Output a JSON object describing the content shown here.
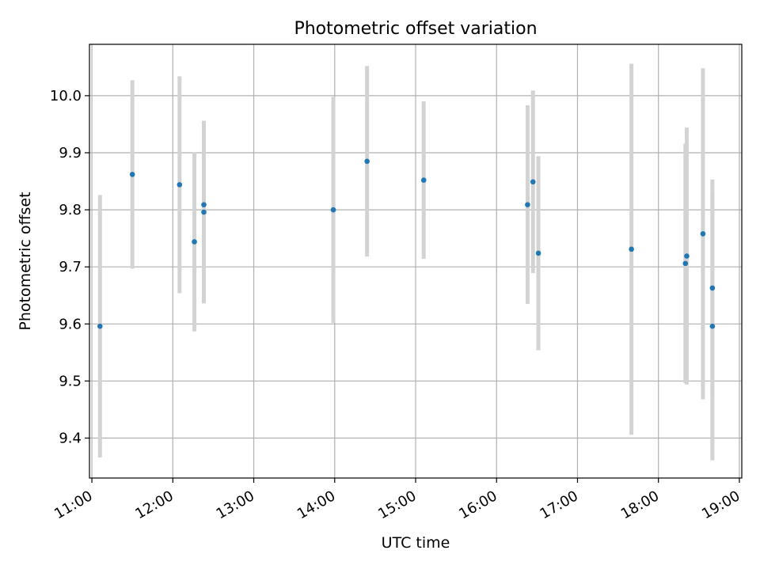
{
  "chart_data": {
    "type": "scatter",
    "title": "Photometric offset variation",
    "xlabel": "UTC time",
    "ylabel": "Photometric offset",
    "x_tick_labels": [
      "11:00",
      "12:00",
      "13:00",
      "14:00",
      "15:00",
      "16:00",
      "17:00",
      "18:00",
      "19:00"
    ],
    "x_ticks_hours": [
      11,
      12,
      13,
      14,
      15,
      16,
      17,
      18,
      19
    ],
    "y_ticks": [
      9.4,
      9.5,
      9.6,
      9.7,
      9.8,
      9.9,
      10.0
    ],
    "y_tick_labels": [
      "9.4",
      "9.5",
      "9.6",
      "9.7",
      "9.8",
      "9.9",
      "10.0"
    ],
    "xlim_hours": [
      10.97,
      19.03
    ],
    "ylim": [
      9.33,
      10.09
    ],
    "grid": true,
    "marker_color": "#1f77b4",
    "errorbar_color": "#d3d3d3",
    "points": [
      {
        "time": "11:06",
        "y": 9.596,
        "err": 0.23
      },
      {
        "time": "11:30",
        "y": 9.862,
        "err": 0.165
      },
      {
        "time": "12:05",
        "y": 9.844,
        "err": 0.19
      },
      {
        "time": "12:16",
        "y": 9.744,
        "err": 0.157
      },
      {
        "time": "12:23",
        "y": 9.796,
        "err": 0.16
      },
      {
        "time": "12:23",
        "y": 9.809,
        "err": 0.14
      },
      {
        "time": "13:59",
        "y": 9.8,
        "err": 0.198
      },
      {
        "time": "14:24",
        "y": 9.885,
        "err": 0.167
      },
      {
        "time": "15:06",
        "y": 9.852,
        "err": 0.138
      },
      {
        "time": "16:23",
        "y": 9.809,
        "err": 0.174
      },
      {
        "time": "16:27",
        "y": 9.849,
        "err": 0.16
      },
      {
        "time": "16:31",
        "y": 9.724,
        "err": 0.17
      },
      {
        "time": "17:40",
        "y": 9.731,
        "err": 0.325
      },
      {
        "time": "18:20",
        "y": 9.706,
        "err": 0.21
      },
      {
        "time": "18:21",
        "y": 9.719,
        "err": 0.225
      },
      {
        "time": "18:33",
        "y": 9.758,
        "err": 0.29
      },
      {
        "time": "18:40",
        "y": 9.663,
        "err": 0.19
      },
      {
        "time": "18:40",
        "y": 9.596,
        "err": 0.235
      }
    ]
  }
}
